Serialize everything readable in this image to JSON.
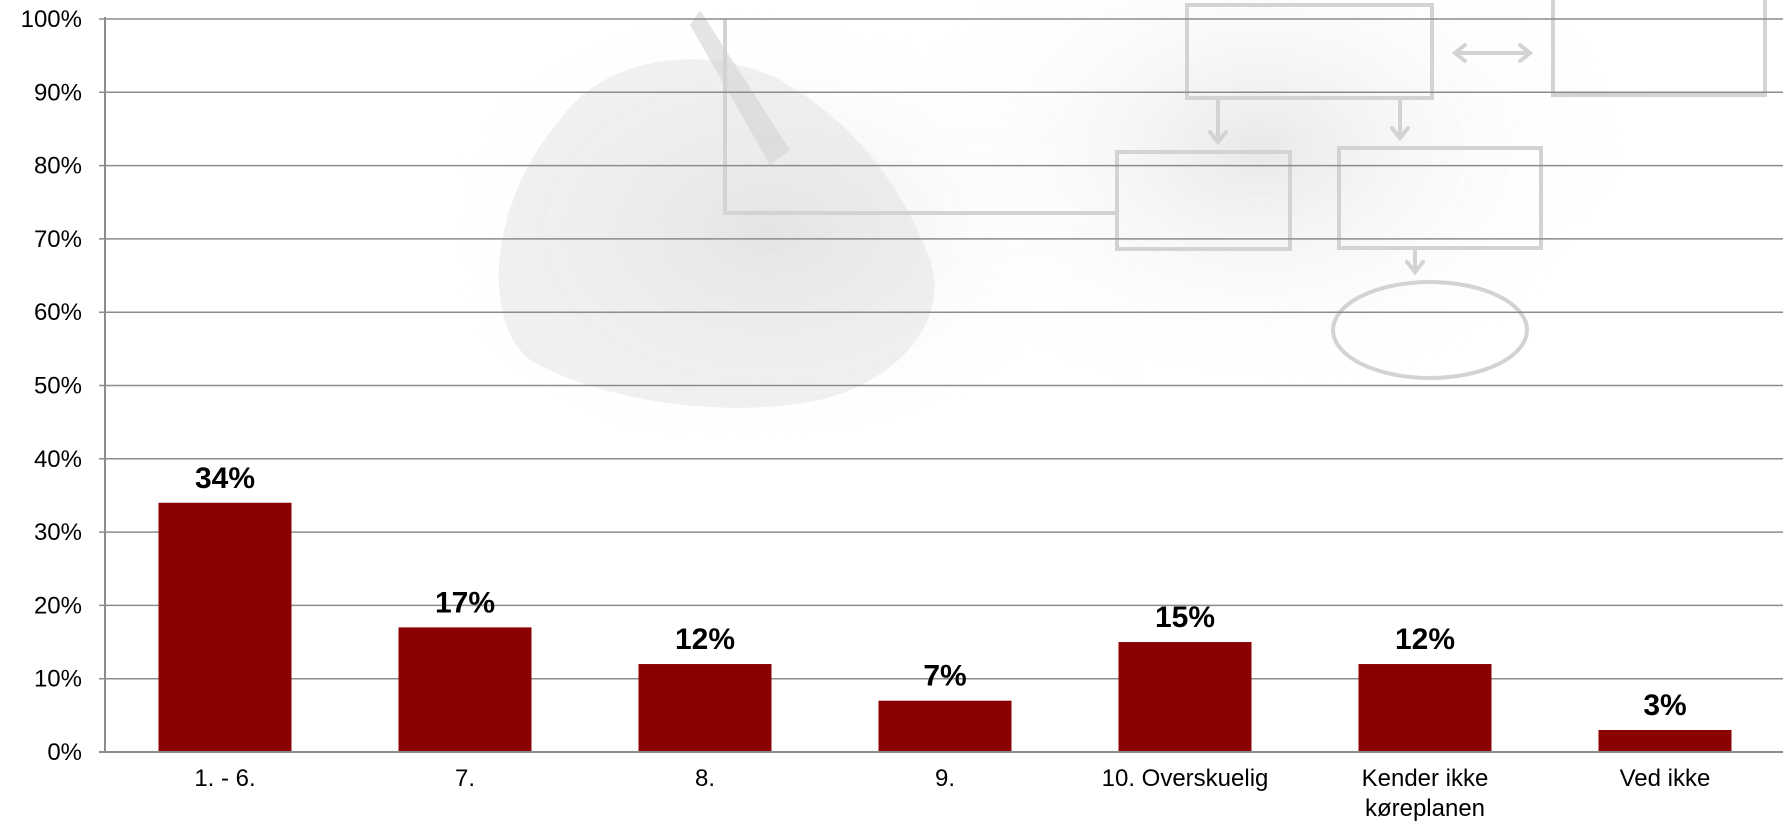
{
  "chart_data": {
    "type": "bar",
    "categories": [
      "1. - 6.",
      "7.",
      "8.",
      "9.",
      "10. Overskuelig",
      "Kender ikke køreplanen",
      "Ved ikke"
    ],
    "category_label_lines": [
      [
        "1. - 6."
      ],
      [
        "7."
      ],
      [
        "8."
      ],
      [
        "9."
      ],
      [
        "10. Overskuelig"
      ],
      [
        "Kender ikke",
        "køreplanen"
      ],
      [
        "Ved ikke"
      ]
    ],
    "values": [
      34,
      17,
      12,
      7,
      15,
      12,
      3
    ],
    "data_labels": [
      "34%",
      "17%",
      "12%",
      "7%",
      "15%",
      "12%",
      "3%"
    ],
    "ylim": [
      0,
      100
    ],
    "yticks": [
      0,
      10,
      20,
      30,
      40,
      50,
      60,
      70,
      80,
      90,
      100
    ],
    "ytick_labels": [
      "0%",
      "10%",
      "20%",
      "30%",
      "40%",
      "50%",
      "60%",
      "70%",
      "80%",
      "90%",
      "100%"
    ],
    "grid": true,
    "bar_color": "#8b0000",
    "background_image": "hand-drawing-flowchart"
  }
}
